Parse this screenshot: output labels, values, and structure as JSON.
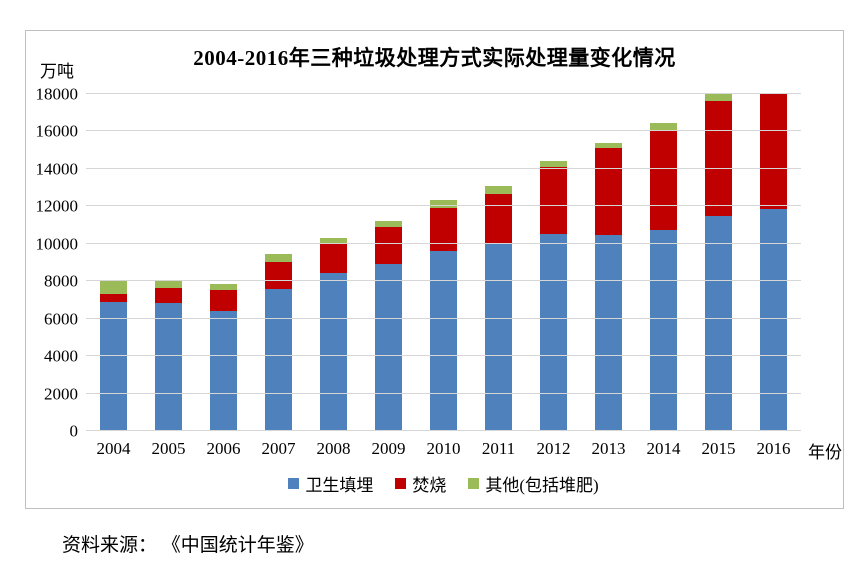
{
  "chart": {
    "title": "2004-2016年三种垃圾处理方式实际处理量变化情况",
    "y_unit_label": "万吨",
    "x_axis_label": "年份",
    "source_note": "资料来源： 《中国统计年鉴》"
  },
  "chart_data": {
    "type": "bar",
    "stacked": true,
    "title": "2004-2016年三种垃圾处理方式实际处理量变化情况",
    "x": [
      "2004",
      "2005",
      "2006",
      "2007",
      "2008",
      "2009",
      "2010",
      "2011",
      "2012",
      "2013",
      "2014",
      "2015",
      "2016"
    ],
    "series": [
      {
        "name": "卫生填埋",
        "color": "#4F81BD",
        "values": [
          6889,
          6858,
          6408,
          7577,
          8424,
          8899,
          9598,
          10064,
          10513,
          10493,
          10744,
          11483,
          11866
        ]
      },
      {
        "name": "焚烧",
        "color": "#C00000",
        "values": [
          449,
          791,
          1138,
          1435,
          1570,
          2022,
          2317,
          2599,
          3584,
          4634,
          5330,
          6176,
          6134
        ]
      },
      {
        "name": "其他(包括堆肥)",
        "color": "#9BBB59",
        "values": [
          751,
          345,
          292,
          427,
          316,
          312,
          403,
          427,
          349,
          267,
          363,
          354,
          0
        ]
      }
    ],
    "ylabel": "万吨",
    "xlabel": "年份",
    "ylim": [
      0,
      18000
    ],
    "y_ticks": [
      0,
      2000,
      4000,
      6000,
      8000,
      10000,
      12000,
      14000,
      16000,
      18000
    ],
    "grid": true,
    "legend_position": "bottom"
  },
  "colors": {
    "grid": "#d6d6d6",
    "frame_border": "#bfbfbf",
    "text": "#000000"
  }
}
